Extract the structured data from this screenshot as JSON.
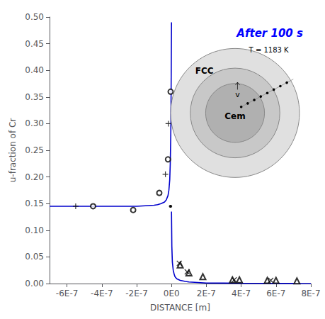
{
  "chart_data": {
    "type": "line",
    "title": "After 100 s",
    "xlabel": "DISTANCE [m]",
    "ylabel": "u-fraction of Cr",
    "xlim": [
      -7e-07,
      8e-07
    ],
    "ylim": [
      0.0,
      0.5
    ],
    "xticks": [
      {
        "value": -6e-07,
        "label": "-6E-7"
      },
      {
        "value": -4e-07,
        "label": "-4E-7"
      },
      {
        "value": -2e-07,
        "label": "-2E-7"
      },
      {
        "value": 0,
        "label": "0E0"
      },
      {
        "value": 2e-07,
        "label": "2E-7"
      },
      {
        "value": 4e-07,
        "label": "4E-7"
      },
      {
        "value": 6e-07,
        "label": "6E-7"
      },
      {
        "value": 8e-07,
        "label": "8E-7"
      }
    ],
    "yticks": [
      {
        "value": 0.0,
        "label": "0.00"
      },
      0.05,
      {
        "value": 0.1,
        "label": "0.10"
      },
      0.15,
      {
        "value": 0.2,
        "label": "0.20"
      },
      0.25,
      {
        "value": 0.3,
        "label": "0.30"
      },
      0.35,
      {
        "value": 0.4,
        "label": "0.40"
      },
      0.45,
      {
        "value": 0.5,
        "label": "0.50"
      }
    ],
    "grid": false,
    "series": [
      {
        "type": "line",
        "color": "#0000cc",
        "x": [
          -7e-07,
          -6e-07,
          -5e-07,
          -4e-07,
          -3e-07,
          -2e-07,
          -1.5e-07,
          -1e-07,
          -8e-08,
          -6e-08,
          -4e-08,
          -3e-08,
          -2e-08,
          -1.5e-08,
          -1e-08,
          -7e-09,
          -4e-09,
          -2e-09,
          0.0
        ],
        "values": [
          0.145,
          0.145,
          0.145,
          0.145,
          0.145,
          0.145,
          0.146,
          0.147,
          0.148,
          0.15,
          0.153,
          0.157,
          0.165,
          0.175,
          0.195,
          0.225,
          0.28,
          0.37,
          0.49
        ]
      },
      {
        "type": "line",
        "color": "#0000cc",
        "x": [
          0.0,
          2e-09,
          5e-09,
          1e-08,
          1.5e-08,
          2e-08,
          3e-08,
          5e-08,
          8e-08,
          1e-07,
          1.5e-07,
          2e-07,
          3e-07,
          4e-07,
          5e-07,
          6e-07,
          7e-07,
          8e-07
        ],
        "values": [
          0.135,
          0.07,
          0.04,
          0.025,
          0.018,
          0.013,
          0.009,
          0.006,
          0.004,
          0.003,
          0.002,
          0.001,
          0.0008,
          0.0005,
          0.0003,
          0.0002,
          0.0001,
          5e-05
        ]
      },
      {
        "type": "scatter",
        "color": "#000000",
        "marker": "circle_open",
        "x": [
          -4.5e-07,
          -2.2e-07,
          -7e-08,
          -2e-08,
          -5e-09
        ],
        "values": [
          0.145,
          0.138,
          0.17,
          0.233,
          0.36
        ]
      },
      {
        "type": "scatter",
        "color": "#000000",
        "marker": "plus",
        "x": [
          -5.5e-07,
          -3.5e-08,
          -1.8e-08
        ],
        "values": [
          0.145,
          0.205,
          0.3
        ]
      },
      {
        "type": "scatter",
        "color": "#000000",
        "marker": "triangle_open",
        "x": [
          5e-08,
          1e-07,
          1.8e-07,
          3.5e-07,
          3.9e-07,
          5.5e-07,
          6e-07,
          7.2e-07
        ],
        "values": [
          0.035,
          0.02,
          0.013,
          0.007,
          0.007,
          0.006,
          0.006,
          0.005
        ]
      },
      {
        "type": "scatter",
        "color": "#000000",
        "marker": "x",
        "x": [
          4.5e-08,
          9e-08,
          3.6e-07,
          5.7e-07
        ],
        "values": [
          0.038,
          0.022,
          0.007,
          0.006
        ]
      },
      {
        "type": "scatter",
        "color": "#000000",
        "marker": "dot",
        "x": [
          -7e-09,
          -4e-09
        ],
        "values": [
          0.145,
          0.145
        ]
      }
    ],
    "annotations": [
      "FCC",
      "Cem",
      "v",
      "T = 1183 K"
    ]
  }
}
